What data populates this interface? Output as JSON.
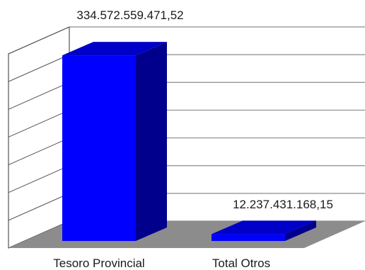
{
  "chart_data": {
    "type": "bar",
    "style": "3d",
    "categories": [
      "Tesoro Provincial",
      "Total Otros"
    ],
    "values": [
      334572559471.52,
      12237431168.15
    ],
    "data_labels": [
      "334.572.559.471,52",
      "12.237.431.168,15"
    ],
    "title": "",
    "xlabel": "",
    "ylabel": "",
    "ylim": [
      0,
      350000000000
    ],
    "grid": true,
    "legend": "none",
    "colors": {
      "bar_front": "#0000ff",
      "bar_side": "#00008c",
      "bar_top": "#0000c8",
      "floor": "#8c8c8c",
      "grid": "#8c8c8c"
    }
  }
}
